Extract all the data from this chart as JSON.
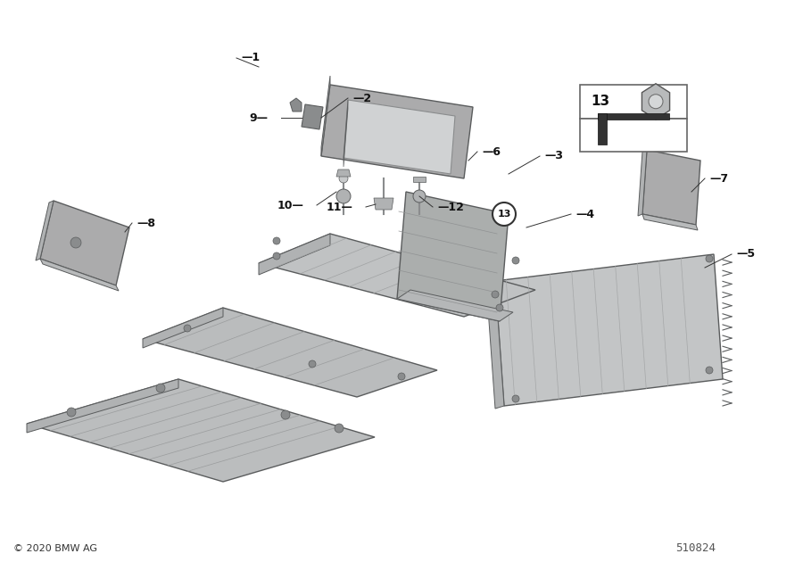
{
  "background_color": "#ffffff",
  "copyright_text": "© 2020 BMW AG",
  "diagram_number": "510824",
  "gray_light": "#c8cacb",
  "gray_mid": "#b0b2b3",
  "gray_dark": "#8a8c8d",
  "gray_darker": "#6a6c6d",
  "gray_edge": "#5a5c5d",
  "gray_shadow": "#9a9c9d"
}
